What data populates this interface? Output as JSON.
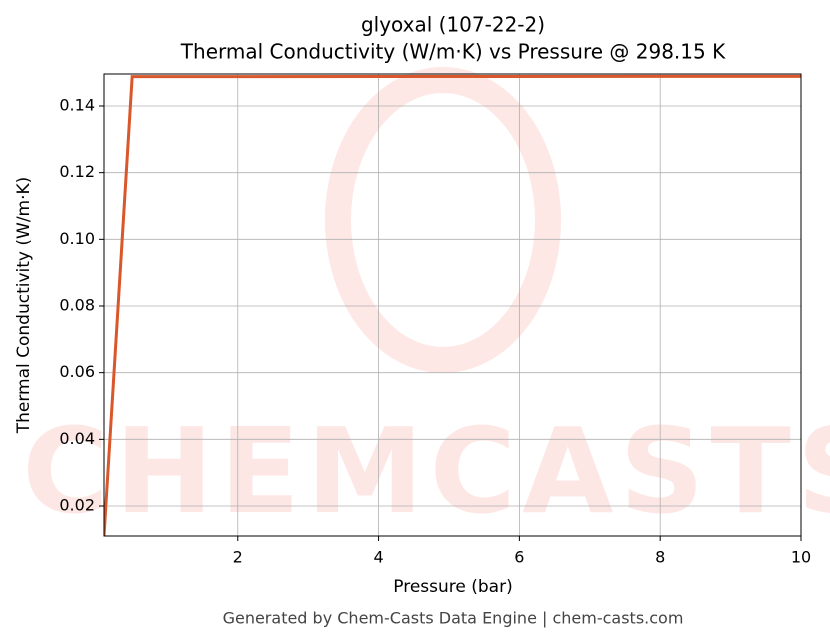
{
  "chart_data": {
    "type": "line",
    "title": "glyoxal (107-22-2)",
    "subtitle": "Thermal Conductivity (W/m·K) vs Pressure @ 298.15 K",
    "x_label": "Pressure (bar)",
    "y_label": "Thermal Conductivity (W/m·K)",
    "footer": "Generated by Chem-Casts Data Engine | chem-casts.com",
    "x": [
      0.1,
      0.5,
      10
    ],
    "series": [
      {
        "name": "glyoxal",
        "color": "#d9572a",
        "values": [
          0.011,
          0.1488,
          0.1489
        ]
      }
    ],
    "xlim": [
      0.1,
      10
    ],
    "xticks": [
      2,
      4,
      6,
      8,
      10
    ],
    "ylim": [
      0.011,
      0.1496
    ],
    "yticks": [
      0.02,
      0.04,
      0.06,
      0.08,
      {
        "value": 0.1,
        "label": "0.10"
      },
      0.12,
      0.14
    ],
    "grid": true
  }
}
